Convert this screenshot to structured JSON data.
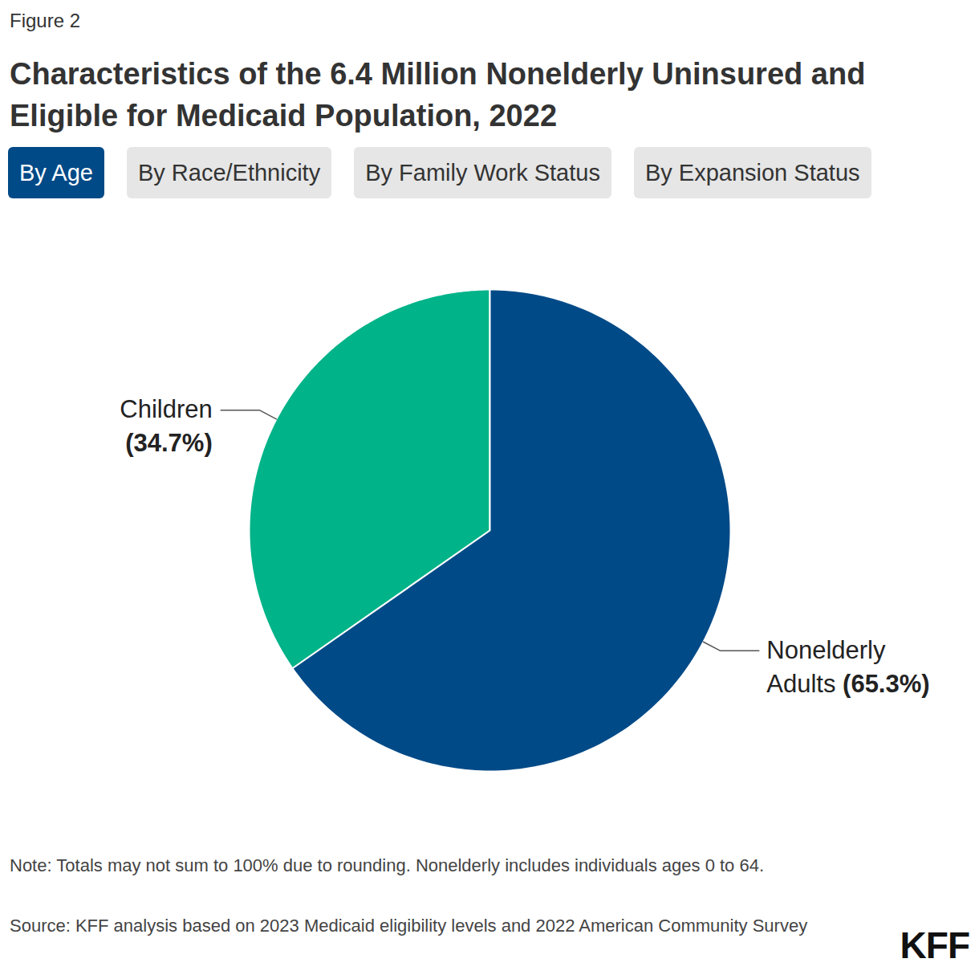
{
  "chart_data": {
    "type": "pie",
    "figure_label": "Figure 2",
    "title": "Characteristics of the 6.4 Million Nonelderly Uninsured and Eligible for Medicaid Population, 2022",
    "tabs": [
      "By Age",
      "By Race/Ethnicity",
      "By Family Work Status",
      "By Expansion Status"
    ],
    "categories": [
      "Children",
      "Nonelderly Adults"
    ],
    "values": [
      34.7,
      65.3
    ],
    "value_labels": [
      "(34.7%)",
      "(65.3%)"
    ],
    "colors": [
      "#00b388",
      "#004a87"
    ],
    "data_labels": true,
    "note": "Note: Totals may not sum to 100% due to rounding. Nonelderly includes individuals ages 0 to 64.",
    "source": "Source: KFF analysis based on 2023 Medicaid eligibility levels and 2022 American Community Survey",
    "brand": "KFF"
  }
}
